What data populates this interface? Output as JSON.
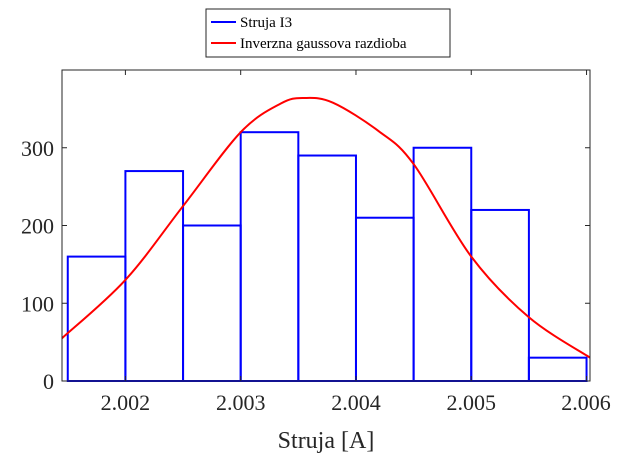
{
  "chart_data": {
    "type": "bar",
    "title": "",
    "xlabel": "Struja [A]",
    "ylabel": "",
    "xlim": [
      2.00145,
      2.00603
    ],
    "ylim": [
      0,
      400
    ],
    "xticks": [
      2.002,
      2.003,
      2.004,
      2.005,
      2.006
    ],
    "xtick_labels": [
      "2.002",
      "2.003",
      "2.004",
      "2.005",
      "2.006"
    ],
    "yticks": [
      0,
      100,
      200,
      300
    ],
    "ytick_labels": [
      "0",
      "100",
      "200",
      "300"
    ],
    "grid": false,
    "legend_position": "top-center-outside",
    "series": [
      {
        "name": "Struja I3",
        "type": "histogram",
        "color": "#0000FF",
        "bin_edges": [
          2.0015,
          2.002,
          2.0025,
          2.003,
          2.0035,
          2.004,
          2.0045,
          2.005,
          2.0055,
          2.006
        ],
        "values": [
          160,
          270,
          200,
          320,
          290,
          210,
          300,
          220,
          30
        ]
      },
      {
        "name": "Inverzna gaussova razdioba",
        "type": "line",
        "color": "#FF0000",
        "x": [
          2.00145,
          2.002,
          2.0025,
          2.003,
          2.00335,
          2.00355,
          2.0038,
          2.0042,
          2.0045,
          2.005,
          2.0055,
          2.00603
        ],
        "values": [
          55,
          130,
          225,
          320,
          357,
          364,
          358,
          321,
          279,
          160,
          82,
          30
        ]
      }
    ]
  }
}
